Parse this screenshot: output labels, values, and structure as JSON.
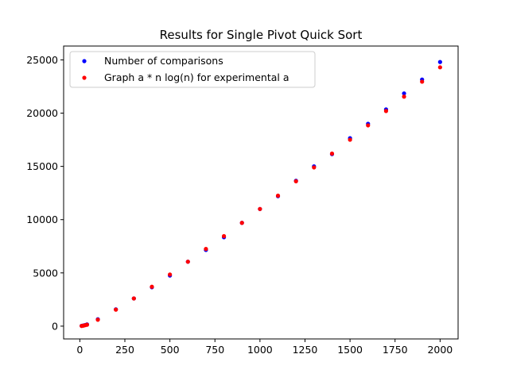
{
  "chart_data": {
    "type": "scatter",
    "title": "Results for Single Pivot Quick Sort",
    "xlabel": "",
    "ylabel": "",
    "xlim": [
      -90,
      2100
    ],
    "ylim": [
      -1200,
      26300
    ],
    "xticks": [
      0,
      250,
      500,
      750,
      1000,
      1250,
      1500,
      1750,
      2000
    ],
    "yticks": [
      0,
      5000,
      10000,
      15000,
      20000,
      25000
    ],
    "grid": false,
    "legend_placement": "upper-left",
    "series": [
      {
        "name": "Number of comparisons",
        "color": "#0000ff",
        "x": [
          10,
          20,
          30,
          40,
          100,
          200,
          300,
          400,
          500,
          600,
          700,
          800,
          900,
          1000,
          1100,
          1200,
          1300,
          1400,
          1500,
          1600,
          1700,
          1800,
          1900,
          2000
        ],
        "y": [
          30,
          70,
          110,
          160,
          650,
          1580,
          2600,
          3650,
          4750,
          6050,
          7150,
          8350,
          9700,
          11000,
          12200,
          13650,
          15000,
          16150,
          17650,
          19000,
          20350,
          21850,
          23150,
          24800
        ]
      },
      {
        "name": "Graph a * n log(n) for experimental a",
        "color": "#ff0000",
        "x": [
          10,
          20,
          30,
          40,
          100,
          200,
          300,
          400,
          500,
          600,
          700,
          800,
          900,
          1000,
          1100,
          1200,
          1300,
          1400,
          1500,
          1600,
          1700,
          1800,
          1900,
          2000
        ],
        "y": [
          20,
          50,
          90,
          130,
          600,
          1550,
          2600,
          3700,
          4850,
          6050,
          7250,
          8450,
          9700,
          11000,
          12250,
          13600,
          14900,
          16200,
          17500,
          18850,
          20200,
          21550,
          22950,
          24300
        ]
      }
    ]
  }
}
